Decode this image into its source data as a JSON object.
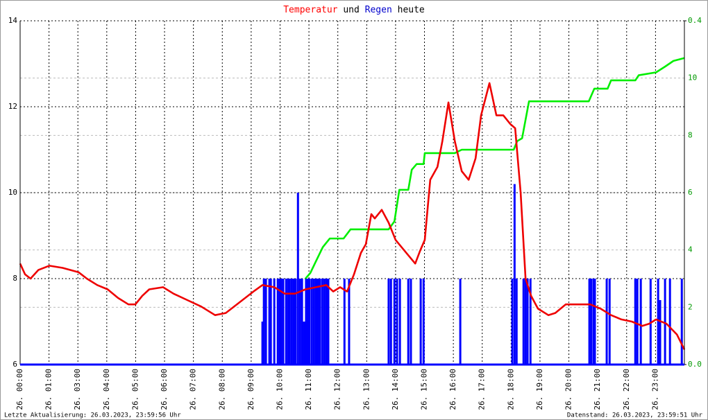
{
  "chart_data": {
    "type": "line",
    "title": [
      {
        "text": "Temperatur",
        "color": "#ff0000"
      },
      {
        "text": "und",
        "color": "#000000"
      },
      {
        "text": "Regen",
        "color": "#0000cc"
      },
      {
        "text": "heute",
        "color": "#000000"
      }
    ],
    "footer_left": "Letzte Aktualisierung: 26.03.2023, 23:59:56 Uhr",
    "footer_right": "Datenstand: 26.03.2023, 23:59:51 Uhr",
    "grid": true,
    "xlim": [
      0,
      23
    ],
    "xticks": [
      {
        "value": 0,
        "label": "26. 00:00"
      },
      {
        "value": 1,
        "label": "26. 01:00"
      },
      {
        "value": 2,
        "label": "26. 03:00"
      },
      {
        "value": 3,
        "label": "26. 04:00"
      },
      {
        "value": 4,
        "label": "26. 05:00"
      },
      {
        "value": 5,
        "label": "26. 06:00"
      },
      {
        "value": 6,
        "label": "26. 07:00"
      },
      {
        "value": 7,
        "label": "26. 08:00"
      },
      {
        "value": 8,
        "label": "26. 09:00"
      },
      {
        "value": 9,
        "label": "26. 10:00"
      },
      {
        "value": 10,
        "label": "26. 11:00"
      },
      {
        "value": 11,
        "label": "26. 12:00"
      },
      {
        "value": 12,
        "label": "26. 13:00"
      },
      {
        "value": 13,
        "label": "26. 14:00"
      },
      {
        "value": 14,
        "label": "26. 15:00"
      },
      {
        "value": 15,
        "label": "26. 16:00"
      },
      {
        "value": 16,
        "label": "26. 17:00"
      },
      {
        "value": 17,
        "label": "26. 18:00"
      },
      {
        "value": 18,
        "label": "26. 19:00"
      },
      {
        "value": 19,
        "label": "26. 20:00"
      },
      {
        "value": 20,
        "label": "26. 21:00"
      },
      {
        "value": 21,
        "label": "26. 22:00"
      },
      {
        "value": 22,
        "label": "26. 23:00"
      }
    ],
    "ylim": [
      6,
      14
    ],
    "yticks": [
      6,
      8,
      10,
      12,
      14
    ],
    "y2lim": [
      0,
      12
    ],
    "y2ticks": [
      2,
      4,
      6,
      8,
      10
    ],
    "y3lim": [
      0,
      0.4
    ],
    "y3ticks": [
      {
        "value": 0,
        "label": "0.0"
      },
      {
        "value": 0.4,
        "label": "0.4"
      }
    ],
    "series": [
      {
        "type": "bar",
        "axis": "y3",
        "color": "#0000ff",
        "x": [
          8.39,
          8.44,
          8.51,
          8.63,
          8.68,
          8.8,
          8.92,
          8.99,
          9.04,
          9.11,
          9.21,
          9.28,
          9.33,
          9.4,
          9.47,
          9.54,
          9.62,
          9.69,
          9.76,
          9.83,
          9.9,
          9.95,
          10.02,
          10.1,
          10.17,
          10.24,
          10.31,
          10.38,
          10.46,
          10.53,
          10.6,
          10.67,
          11.23,
          11.39,
          12.76,
          12.84,
          12.96,
          13.05,
          13.15,
          13.44,
          13.53,
          13.87,
          13.97,
          15.24,
          17.04,
          17.12,
          17.19,
          17.43,
          17.5,
          17.57,
          17.67,
          19.71,
          19.78,
          19.86,
          19.9,
          20.31,
          20.41,
          21.3,
          21.37,
          21.49,
          21.83,
          22.09,
          22.16,
          22.33,
          22.5,
          22.91
        ],
        "values": [
          0.05,
          0.1,
          0.1,
          0.1,
          0.1,
          0.1,
          0.1,
          0.1,
          0.1,
          0.1,
          0.1,
          0.1,
          0.1,
          0.1,
          0.1,
          0.1,
          0.2,
          0.1,
          0.1,
          0.05,
          0.1,
          0.1,
          0.1,
          0.1,
          0.1,
          0.1,
          0.1,
          0.1,
          0.1,
          0.1,
          0.1,
          0.1,
          0.1,
          0.1,
          0.1,
          0.1,
          0.1,
          0.1,
          0.1,
          0.1,
          0.1,
          0.1,
          0.1,
          0.1,
          0.1,
          0.21,
          0.1,
          0.1,
          0.1,
          0.1,
          0.1,
          0.1,
          0.1,
          0.1,
          0.1,
          0.1,
          0.1,
          0.1,
          0.1,
          0.1,
          0.1,
          0.1,
          0.075,
          0.1,
          0.1,
          0.1
        ]
      },
      {
        "type": "line",
        "axis": "y2",
        "color": "#00ee00",
        "x": [
          9.88,
          10.05,
          10.24,
          10.48,
          10.72,
          11.2,
          11.44,
          12.76,
          12.96,
          13.13,
          13.44,
          13.56,
          13.73,
          13.97,
          14.01,
          15.05,
          15.29,
          17.09,
          17.21,
          17.38,
          17.62,
          19.69,
          19.88,
          20.34,
          20.46,
          21.3,
          21.42,
          22.02,
          22.33,
          22.62,
          23
        ],
        "values": [
          3.0,
          3.2,
          3.6,
          4.1,
          4.4,
          4.4,
          4.72,
          4.72,
          5.0,
          6.1,
          6.1,
          6.8,
          7.0,
          7.0,
          7.38,
          7.38,
          7.5,
          7.5,
          7.8,
          7.9,
          9.19,
          9.19,
          9.63,
          9.63,
          9.92,
          9.92,
          10.1,
          10.2,
          10.4,
          10.6,
          10.7
        ]
      },
      {
        "type": "line",
        "axis": "y",
        "color": "#ee0000",
        "x": [
          0,
          0.17,
          0.36,
          0.63,
          1.01,
          1.47,
          2.02,
          2.31,
          2.67,
          3.03,
          3.39,
          3.75,
          3.99,
          4.23,
          4.47,
          4.95,
          5.31,
          5.79,
          6.27,
          6.75,
          7.12,
          7.6,
          8.08,
          8.39,
          8.8,
          9.16,
          9.52,
          9.88,
          10.24,
          10.6,
          10.84,
          11.08,
          11.32,
          11.56,
          11.8,
          11.97,
          12.16,
          12.28,
          12.52,
          12.76,
          13,
          13.37,
          13.68,
          13.85,
          14.01,
          14.2,
          14.45,
          14.62,
          14.83,
          15.05,
          15.29,
          15.53,
          15.77,
          15.96,
          16.25,
          16.49,
          16.73,
          16.97,
          17.14,
          17.33,
          17.5,
          17.69,
          17.93,
          18.29,
          18.53,
          18.89,
          19.25,
          19.74,
          20.1,
          20.46,
          20.82,
          21.18,
          21.54,
          21.78,
          22.02,
          22.38,
          22.74,
          23
        ],
        "values": [
          8.35,
          8.1,
          8.0,
          8.2,
          8.3,
          8.25,
          8.15,
          8.0,
          7.85,
          7.75,
          7.55,
          7.4,
          7.4,
          7.6,
          7.75,
          7.8,
          7.65,
          7.5,
          7.35,
          7.15,
          7.2,
          7.45,
          7.7,
          7.85,
          7.8,
          7.65,
          7.65,
          7.75,
          7.8,
          7.85,
          7.7,
          7.8,
          7.7,
          8.1,
          8.6,
          8.8,
          9.5,
          9.4,
          9.6,
          9.3,
          8.9,
          8.6,
          8.35,
          8.65,
          8.9,
          10.3,
          10.6,
          11.2,
          12.1,
          11.2,
          10.5,
          10.3,
          10.8,
          11.8,
          12.55,
          11.8,
          11.8,
          11.6,
          11.5,
          10.0,
          8.0,
          7.6,
          7.3,
          7.15,
          7.2,
          7.4,
          7.4,
          7.4,
          7.3,
          7.15,
          7.05,
          7.0,
          6.9,
          6.95,
          7.05,
          6.95,
          6.7,
          6.35
        ]
      }
    ]
  }
}
